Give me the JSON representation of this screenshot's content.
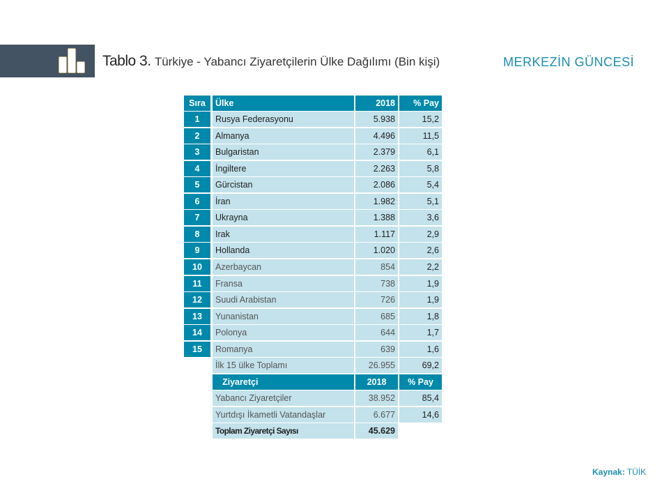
{
  "header": {
    "title_bold": "Tablo 3.",
    "title_rest": "Türkiye - Yabancı Ziyaretçilerin Ülke Dağılımı (Bin kişi)",
    "brand": "MERKEZİN GÜNCESİ",
    "icon": "bar-chart-icon"
  },
  "table1": {
    "headers": [
      "Sıra",
      "Ülke",
      "2018",
      "% Pay"
    ],
    "rows": [
      [
        "1",
        "Rusya Federasyonu",
        "5.938",
        "15,2"
      ],
      [
        "2",
        "Almanya",
        "4.496",
        "11,5"
      ],
      [
        "3",
        "Bulgaristan",
        "2.379",
        "6,1"
      ],
      [
        "4",
        "İngiltere",
        "2.263",
        "5,8"
      ],
      [
        "5",
        "Gürcistan",
        "2.086",
        "5,4"
      ],
      [
        "6",
        "İran",
        "1.982",
        "5,1"
      ],
      [
        "7",
        "Ukrayna",
        "1.388",
        "3,6"
      ],
      [
        "8",
        "Irak",
        "1.117",
        "2,9"
      ],
      [
        "9",
        "Hollanda",
        "1.020",
        "2,6"
      ],
      [
        "10",
        "Azerbaycan",
        "854",
        "2,2"
      ],
      [
        "11",
        "Fransa",
        "738",
        "1,9"
      ],
      [
        "12",
        "Suudi Arabistan",
        "726",
        "1,9"
      ],
      [
        "13",
        "Yunanistan",
        "685",
        "1,8"
      ],
      [
        "14",
        "Polonya",
        "644",
        "1,7"
      ],
      [
        "15",
        "Romanya",
        "639",
        "1,6"
      ]
    ],
    "total": [
      "İlk 15 ülke Toplamı",
      "26.955",
      "69,2"
    ]
  },
  "table2": {
    "headers": [
      "Ziyaretçi",
      "2018",
      "% Pay"
    ],
    "rows": [
      [
        "Yabancı Ziyaretçiler",
        "38.952",
        "85,4"
      ],
      [
        "Yurtdışı İkametli Vatandaşlar",
        "6.677",
        "14,6"
      ]
    ],
    "total": [
      "Toplam Ziyaretçi Sayısı",
      "45.629"
    ]
  },
  "source": {
    "label": "Kaynak:",
    "value": "TÜİK"
  }
}
